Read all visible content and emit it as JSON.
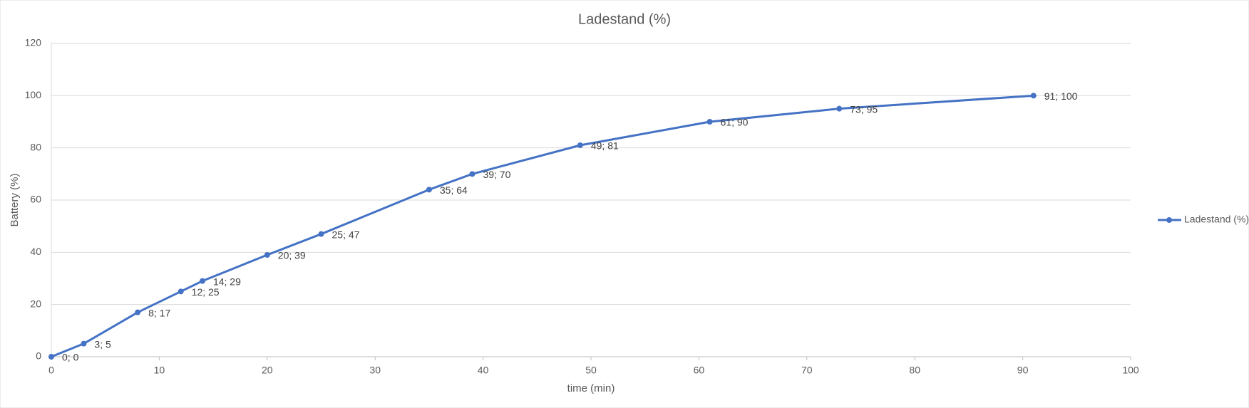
{
  "chart_data": {
    "type": "scatter",
    "lines": true,
    "markers": true,
    "title": "Ladestand (%)",
    "x_label": "time (min)",
    "y_label": "Battery (%)",
    "x": [
      0,
      3,
      8,
      12,
      14,
      20,
      25,
      35,
      39,
      49,
      61,
      73,
      91
    ],
    "series": [
      {
        "name": "Ladestand (%)",
        "color": "#4472c4",
        "values": [
          0,
          5,
          17,
          25,
          29,
          39,
          47,
          64,
          70,
          81,
          90,
          95,
          100
        ],
        "value_labels": [
          "0; 0",
          "3; 5",
          "8; 17",
          "12; 25",
          "14; 29",
          "20; 39",
          "25; 47",
          "35; 64",
          "39; 70",
          "49; 81",
          "61; 90",
          "73; 95",
          "91; 100"
        ]
      }
    ],
    "xlim": [
      0,
      100
    ],
    "xticks": [
      0,
      10,
      20,
      30,
      40,
      50,
      60,
      70,
      80,
      90,
      100
    ],
    "ylim": [
      0,
      120
    ],
    "yticks": [
      0,
      20,
      40,
      60,
      80,
      100,
      120
    ],
    "grid": true,
    "legend": "right"
  }
}
